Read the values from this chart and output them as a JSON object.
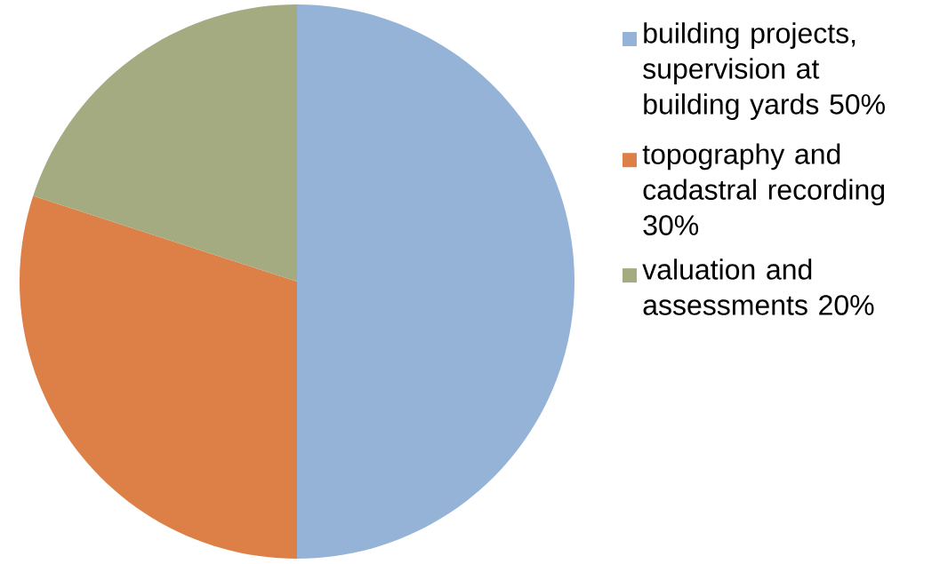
{
  "chart_data": {
    "type": "pie",
    "categories": [
      "building projects, supervision at building yards 50%",
      "topography and cadastral recording 30%",
      "valuation and assessments 20%"
    ],
    "values": [
      50,
      30,
      20
    ],
    "colors": [
      "#95b3d7",
      "#dd8047",
      "#a5ab81"
    ],
    "legend": "right"
  }
}
